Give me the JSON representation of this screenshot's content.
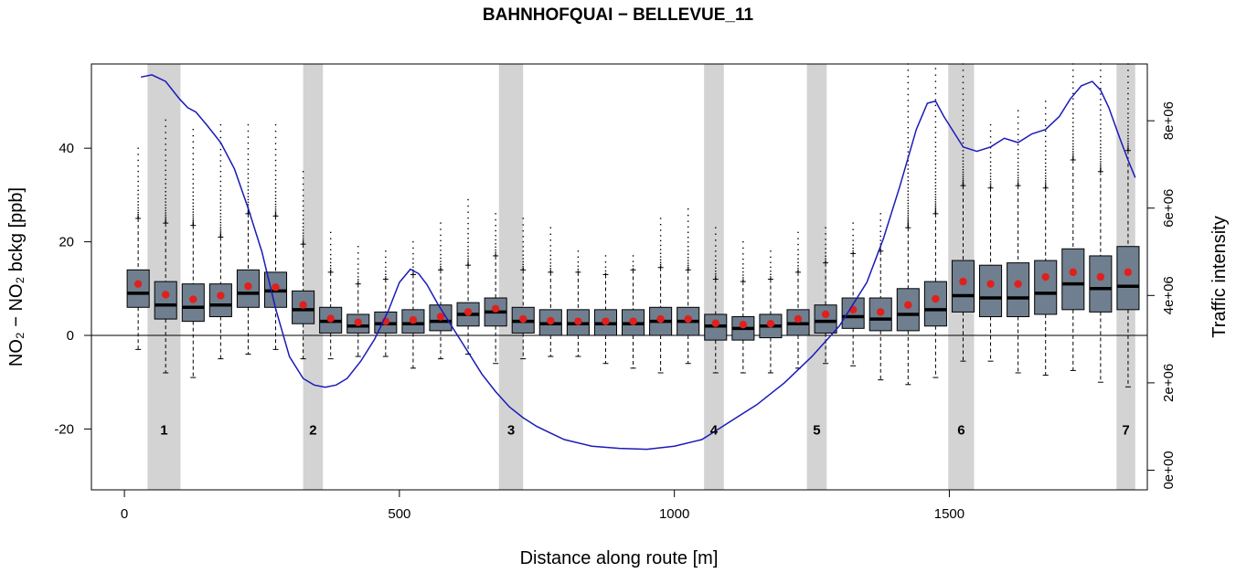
{
  "chart_data": {
    "type": "boxplot",
    "title": "BAHNHOFQUAI − BELLEVUE_11",
    "xlabel": "Distance along route [m]",
    "ylabel_left": "NO₂ − NO₂ bckg [ppb]",
    "ylabel_right": "Traffic intensity",
    "xlim": [
      -60,
      1860
    ],
    "ylim": [
      -33,
      58
    ],
    "y2lim": [
      -450000,
      9300000
    ],
    "xticks": [
      0,
      500,
      1000,
      1500
    ],
    "xtick_labels": [
      "0",
      "500",
      "1000",
      "1500"
    ],
    "yticks": [
      -20,
      0,
      20,
      40
    ],
    "ytick_labels": [
      "-20",
      "0",
      "20",
      "40"
    ],
    "y2ticks": [
      0,
      2000000,
      4000000,
      6000000,
      8000000
    ],
    "y2tick_labels": [
      "0e+00",
      "2e+06",
      "4e+06",
      "6e+06",
      "8e+06"
    ],
    "zero_line": 0,
    "zones": [
      {
        "label": "1",
        "from": 42,
        "to": 102
      },
      {
        "label": "2",
        "from": 325,
        "to": 361
      },
      {
        "label": "3",
        "from": 681,
        "to": 725
      },
      {
        "label": "4",
        "from": 1054,
        "to": 1090
      },
      {
        "label": "5",
        "from": 1241,
        "to": 1277
      },
      {
        "label": "6",
        "from": 1498,
        "to": 1545
      },
      {
        "label": "7",
        "from": 1804,
        "to": 1838
      }
    ],
    "zone_label_y": -20,
    "box_half_width": 20,
    "boxes": [
      {
        "x": 25,
        "low": -3,
        "q1": 6,
        "median": 9,
        "q3": 14,
        "high": 25,
        "mean": 11,
        "outlier_max": 40
      },
      {
        "x": 75,
        "low": -8,
        "q1": 3.5,
        "median": 6.5,
        "q3": 11.5,
        "high": 24,
        "mean": 8.7,
        "outlier_max": 46
      },
      {
        "x": 125,
        "low": -9,
        "q1": 3,
        "median": 6,
        "q3": 11,
        "high": 23.5,
        "mean": 7.7,
        "outlier_max": 44
      },
      {
        "x": 175,
        "low": -5,
        "q1": 4,
        "median": 6.5,
        "q3": 11,
        "high": 21,
        "mean": 8.5,
        "outlier_max": 45
      },
      {
        "x": 225,
        "low": -4,
        "q1": 6,
        "median": 9,
        "q3": 14,
        "high": 26,
        "mean": 10.5,
        "outlier_max": 45
      },
      {
        "x": 275,
        "low": -3,
        "q1": 6,
        "median": 9.5,
        "q3": 13.5,
        "high": 25.5,
        "mean": 10.3,
        "outlier_max": 45
      },
      {
        "x": 325,
        "low": -5,
        "q1": 2.5,
        "median": 5.5,
        "q3": 9.5,
        "high": 19.5,
        "mean": 6.5,
        "outlier_max": 35
      },
      {
        "x": 375,
        "low": -5,
        "q1": 0.5,
        "median": 3,
        "q3": 6,
        "high": 13.5,
        "mean": 3.6,
        "outlier_max": 22
      },
      {
        "x": 425,
        "low": -4.5,
        "q1": 0.5,
        "median": 2,
        "q3": 4.5,
        "high": 11,
        "mean": 2.8,
        "outlier_max": 19
      },
      {
        "x": 475,
        "low": -4.5,
        "q1": 0.5,
        "median": 2.5,
        "q3": 5,
        "high": 12,
        "mean": 3,
        "outlier_max": 18
      },
      {
        "x": 525,
        "low": -7,
        "q1": 0.5,
        "median": 2.5,
        "q3": 5.5,
        "high": 13,
        "mean": 3.3,
        "outlier_max": 20
      },
      {
        "x": 575,
        "low": -5,
        "q1": 1,
        "median": 3,
        "q3": 6.5,
        "high": 14,
        "mean": 4,
        "outlier_max": 24
      },
      {
        "x": 625,
        "low": -4,
        "q1": 2,
        "median": 4.5,
        "q3": 7,
        "high": 15,
        "mean": 5,
        "outlier_max": 29
      },
      {
        "x": 675,
        "low": -6,
        "q1": 2,
        "median": 5,
        "q3": 8,
        "high": 17,
        "mean": 5.7,
        "outlier_max": 26
      },
      {
        "x": 725,
        "low": -5,
        "q1": 0.5,
        "median": 3,
        "q3": 6,
        "high": 14,
        "mean": 3.5,
        "outlier_max": 25
      },
      {
        "x": 775,
        "low": -4.5,
        "q1": 0,
        "median": 2.5,
        "q3": 5.5,
        "high": 13.5,
        "mean": 3.1,
        "outlier_max": 23
      },
      {
        "x": 825,
        "low": -4.5,
        "q1": 0,
        "median": 2.5,
        "q3": 5.5,
        "high": 13.5,
        "mean": 3,
        "outlier_max": 18
      },
      {
        "x": 875,
        "low": -6,
        "q1": 0,
        "median": 2.5,
        "q3": 5.5,
        "high": 13,
        "mean": 3,
        "outlier_max": 17
      },
      {
        "x": 925,
        "low": -7,
        "q1": 0,
        "median": 2.5,
        "q3": 5.5,
        "high": 14,
        "mean": 3,
        "outlier_max": 17
      },
      {
        "x": 975,
        "low": -8,
        "q1": 0,
        "median": 3,
        "q3": 6,
        "high": 14.5,
        "mean": 3.5,
        "outlier_max": 25
      },
      {
        "x": 1025,
        "low": -6,
        "q1": 0,
        "median": 3,
        "q3": 6,
        "high": 14,
        "mean": 3.5,
        "outlier_max": 27
      },
      {
        "x": 1075,
        "low": -8,
        "q1": -1,
        "median": 2,
        "q3": 4.5,
        "high": 12,
        "mean": 2.6,
        "outlier_max": 23
      },
      {
        "x": 1125,
        "low": -8,
        "q1": -1,
        "median": 1.5,
        "q3": 4,
        "high": 11.5,
        "mean": 2.3,
        "outlier_max": 20
      },
      {
        "x": 1175,
        "low": -8,
        "q1": -0.5,
        "median": 2,
        "q3": 4.5,
        "high": 12,
        "mean": 2.5,
        "outlier_max": 18
      },
      {
        "x": 1225,
        "low": -7,
        "q1": 0,
        "median": 2.5,
        "q3": 5.5,
        "high": 13.5,
        "mean": 3.5,
        "outlier_max": 22
      },
      {
        "x": 1275,
        "low": -6,
        "q1": 0.5,
        "median": 3,
        "q3": 6.5,
        "high": 15.5,
        "mean": 4.5,
        "outlier_max": 23
      },
      {
        "x": 1325,
        "low": -6.5,
        "q1": 1.5,
        "median": 4,
        "q3": 8,
        "high": 17.5,
        "mean": 5.5,
        "outlier_max": 24
      },
      {
        "x": 1375,
        "low": -9.5,
        "q1": 1,
        "median": 3.5,
        "q3": 8,
        "high": 18,
        "mean": 5,
        "outlier_max": 26
      },
      {
        "x": 1425,
        "low": -10.5,
        "q1": 1,
        "median": 4.5,
        "q3": 10,
        "high": 23,
        "mean": 6.5,
        "outlier_max": 58
      },
      {
        "x": 1475,
        "low": -9,
        "q1": 2,
        "median": 5.5,
        "q3": 11.5,
        "high": 26,
        "mean": 7.8,
        "outlier_max": 57
      },
      {
        "x": 1525,
        "low": -5.5,
        "q1": 5,
        "median": 8.5,
        "q3": 16,
        "high": 32,
        "mean": 11.5,
        "outlier_max": 58
      },
      {
        "x": 1575,
        "low": -5.5,
        "q1": 4,
        "median": 8,
        "q3": 15,
        "high": 31.5,
        "mean": 11,
        "outlier_max": 45
      },
      {
        "x": 1625,
        "low": -8,
        "q1": 4,
        "median": 8,
        "q3": 15.5,
        "high": 32,
        "mean": 11,
        "outlier_max": 48
      },
      {
        "x": 1675,
        "low": -8.5,
        "q1": 4.5,
        "median": 9,
        "q3": 16,
        "high": 31.5,
        "mean": 12.5,
        "outlier_max": 50
      },
      {
        "x": 1725,
        "low": -7.5,
        "q1": 5.5,
        "median": 11,
        "q3": 18.5,
        "high": 37.5,
        "mean": 13.5,
        "outlier_max": 58
      },
      {
        "x": 1775,
        "low": -10,
        "q1": 5,
        "median": 10,
        "q3": 17,
        "high": 35,
        "mean": 12.5,
        "outlier_max": 58
      },
      {
        "x": 1825,
        "low": -11,
        "q1": 5.5,
        "median": 10.5,
        "q3": 19,
        "high": 39.5,
        "mean": 13.5,
        "outlier_max": 58
      }
    ],
    "traffic_line": {
      "x": [
        30,
        50,
        75,
        100,
        115,
        130,
        150,
        175,
        200,
        225,
        250,
        275,
        300,
        325,
        345,
        365,
        385,
        405,
        430,
        455,
        480,
        500,
        520,
        535,
        550,
        570,
        600,
        625,
        650,
        675,
        700,
        725,
        750,
        775,
        800,
        850,
        900,
        950,
        1000,
        1050,
        1075,
        1100,
        1150,
        1200,
        1250,
        1300,
        1350,
        1380,
        1410,
        1440,
        1460,
        1475,
        1490,
        1510,
        1525,
        1550,
        1575,
        1600,
        1625,
        1650,
        1675,
        1700,
        1720,
        1740,
        1760,
        1775,
        1790,
        1810,
        1825,
        1838
      ],
      "y": [
        9000000,
        9050000,
        8900000,
        8500000,
        8300000,
        8200000,
        7900000,
        7500000,
        6900000,
        6000000,
        5000000,
        3700000,
        2600000,
        2100000,
        1950000,
        1900000,
        1950000,
        2100000,
        2500000,
        3000000,
        3650000,
        4300000,
        4600000,
        4500000,
        4250000,
        3800000,
        3200000,
        2700000,
        2200000,
        1800000,
        1450000,
        1200000,
        1000000,
        850000,
        700000,
        550000,
        500000,
        480000,
        550000,
        700000,
        900000,
        1100000,
        1500000,
        2000000,
        2600000,
        3300000,
        4300000,
        5300000,
        6500000,
        7800000,
        8400000,
        8450000,
        8100000,
        7700000,
        7400000,
        7300000,
        7400000,
        7600000,
        7500000,
        7700000,
        7800000,
        8100000,
        8500000,
        8800000,
        8900000,
        8700000,
        8300000,
        7600000,
        7100000,
        6700000
      ]
    }
  },
  "colors": {
    "box_fill": "#6f7f8f",
    "zone_fill": "#d3d3d3",
    "mean_dot": "#e0201c",
    "traffic_line": "#1a1ab8",
    "axis": "#000000"
  }
}
